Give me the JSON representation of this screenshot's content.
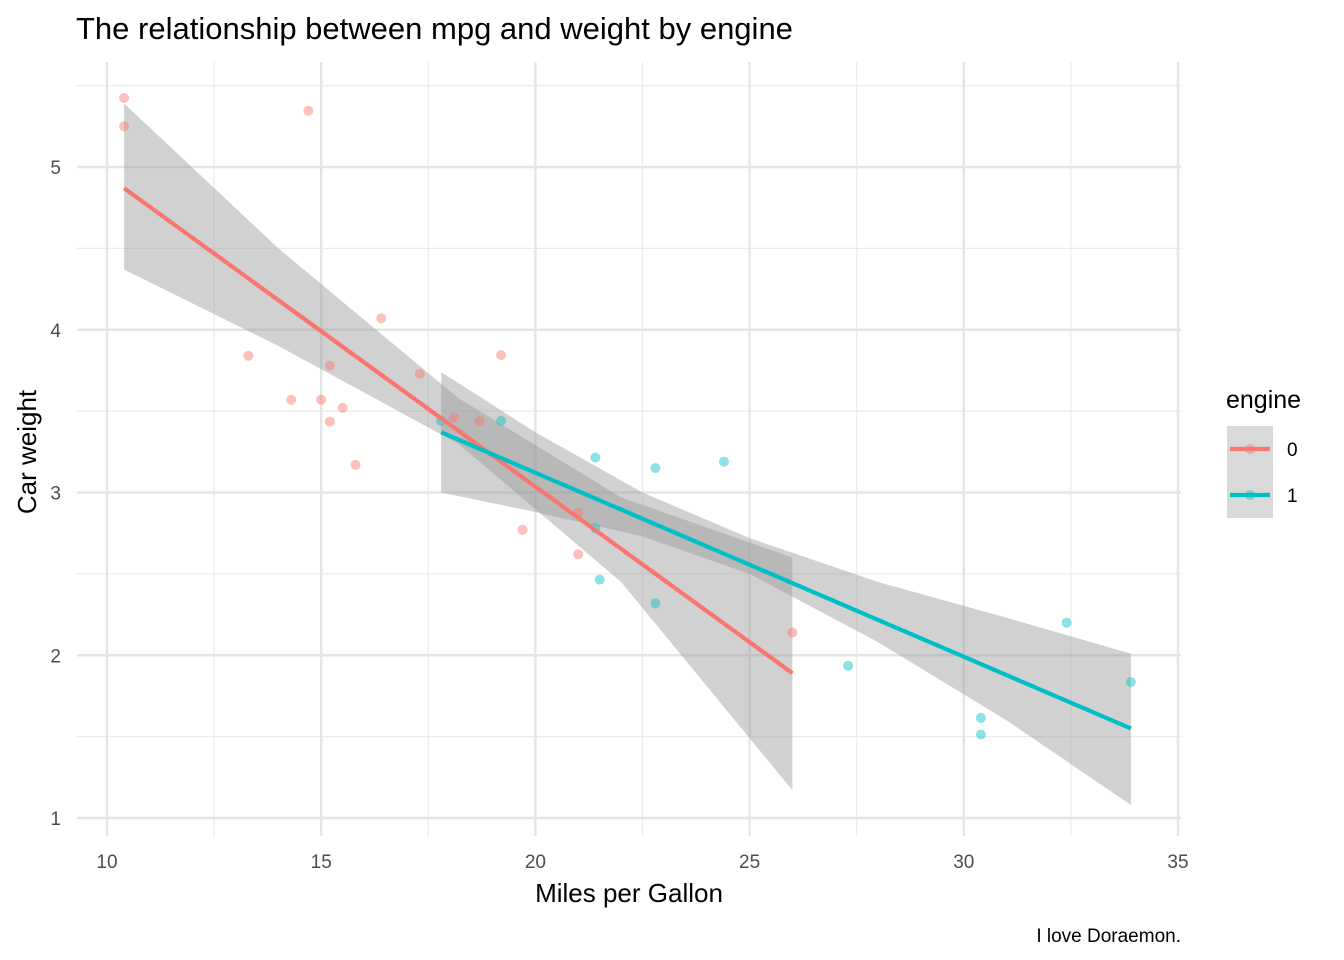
{
  "chart_data": {
    "type": "scatter",
    "title": "The relationship between mpg and weight by engine",
    "xlabel": "Miles per Gallon",
    "ylabel": "Car weight",
    "caption": "I love Doraemon.",
    "xlim": [
      9.2,
      35.2
    ],
    "ylim": [
      0.8,
      5.7
    ],
    "x_ticks": [
      10,
      15,
      20,
      25,
      30,
      35
    ],
    "y_ticks": [
      1,
      2,
      3,
      4,
      5
    ],
    "grid": true,
    "legend": {
      "title": "engine",
      "position": "right"
    },
    "series": [
      {
        "name": "0",
        "color": "#F8766D",
        "points": [
          [
            21.0,
            2.62
          ],
          [
            21.0,
            2.875
          ],
          [
            18.7,
            3.44
          ],
          [
            18.1,
            3.46
          ],
          [
            14.3,
            3.57
          ],
          [
            16.4,
            4.07
          ],
          [
            17.3,
            3.73
          ],
          [
            15.2,
            3.78
          ],
          [
            10.4,
            5.25
          ],
          [
            10.4,
            5.424
          ],
          [
            14.7,
            5.345
          ],
          [
            15.5,
            3.52
          ],
          [
            15.2,
            3.435
          ],
          [
            13.3,
            3.84
          ],
          [
            19.2,
            3.845
          ],
          [
            26.0,
            2.14
          ],
          [
            15.8,
            3.17
          ],
          [
            19.7,
            2.77
          ],
          [
            15.0,
            3.57
          ]
        ],
        "fit": {
          "x": [
            10.4,
            26.0
          ],
          "y": [
            4.87,
            1.89
          ]
        },
        "band": {
          "x": [
            10.4,
            14.0,
            18.2,
            22.0,
            26.0
          ],
          "lower": [
            4.37,
            3.9,
            3.3,
            2.45,
            1.17
          ],
          "upper": [
            5.39,
            4.5,
            3.58,
            2.97,
            2.6
          ]
        }
      },
      {
        "name": "1",
        "color": "#00BFC4",
        "points": [
          [
            22.8,
            2.32
          ],
          [
            24.4,
            3.19
          ],
          [
            22.8,
            3.15
          ],
          [
            19.2,
            3.44
          ],
          [
            17.8,
            3.44
          ],
          [
            32.4,
            2.2
          ],
          [
            30.4,
            1.615
          ],
          [
            33.9,
            1.835
          ],
          [
            21.5,
            2.465
          ],
          [
            27.3,
            1.935
          ],
          [
            30.4,
            1.513
          ],
          [
            21.4,
            2.78
          ],
          [
            21.4,
            3.215
          ]
        ],
        "fit": {
          "x": [
            17.8,
            33.9
          ],
          "y": [
            3.37,
            1.55
          ]
        },
        "band": {
          "x": [
            17.8,
            20.0,
            22.5,
            25.0,
            28.0,
            31.0,
            33.9
          ],
          "lower": [
            3.0,
            2.88,
            2.73,
            2.5,
            2.08,
            1.6,
            1.08
          ],
          "upper": [
            3.74,
            3.37,
            3.0,
            2.72,
            2.45,
            2.23,
            2.01
          ]
        }
      }
    ]
  }
}
